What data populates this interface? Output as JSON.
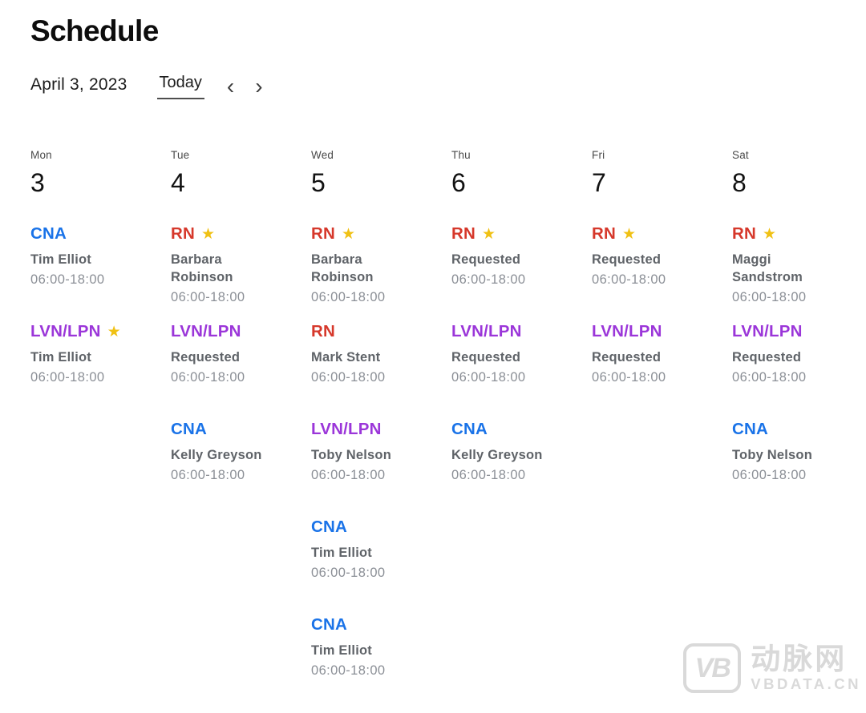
{
  "page_title": "Schedule",
  "toolbar": {
    "date_label": "April 3, 2023",
    "today_label": "Today",
    "prev_icon": "‹",
    "next_icon": "›"
  },
  "icons": {
    "star": "★"
  },
  "colors": {
    "cna": "#1a73e8",
    "rn": "#d6382b",
    "lvn": "#9b36d9",
    "star": "#f0c114",
    "name_text": "#5f6368",
    "time_text": "#8b8f96"
  },
  "days": [
    {
      "weekday": "Mon",
      "number": "3",
      "shifts": [
        {
          "role": "CNA",
          "role_key": "cna",
          "starred": false,
          "name": "Tim Elliot",
          "time": "06:00-18:00"
        },
        {
          "role": "LVN/LPN",
          "role_key": "lvn",
          "starred": true,
          "name": "Tim Elliot",
          "time": "06:00-18:00"
        },
        null,
        null,
        null
      ]
    },
    {
      "weekday": "Tue",
      "number": "4",
      "shifts": [
        {
          "role": "RN",
          "role_key": "rn",
          "starred": true,
          "name": "Barbara Robinson",
          "time": "06:00-18:00"
        },
        {
          "role": "LVN/LPN",
          "role_key": "lvn",
          "starred": false,
          "name": "Requested",
          "time": "06:00-18:00"
        },
        {
          "role": "CNA",
          "role_key": "cna",
          "starred": false,
          "name": "Kelly Greyson",
          "time": "06:00-18:00"
        },
        null,
        null
      ]
    },
    {
      "weekday": "Wed",
      "number": "5",
      "shifts": [
        {
          "role": "RN",
          "role_key": "rn",
          "starred": true,
          "name": "Barbara Robinson",
          "time": "06:00-18:00"
        },
        {
          "role": "RN",
          "role_key": "rn",
          "starred": false,
          "name": "Mark Stent",
          "time": "06:00-18:00"
        },
        {
          "role": "LVN/LPN",
          "role_key": "lvn",
          "starred": false,
          "name": "Toby Nelson",
          "time": "06:00-18:00"
        },
        {
          "role": "CNA",
          "role_key": "cna",
          "starred": false,
          "name": "Tim Elliot",
          "time": "06:00-18:00"
        },
        {
          "role": "CNA",
          "role_key": "cna",
          "starred": false,
          "name": "Tim Elliot",
          "time": "06:00-18:00"
        }
      ]
    },
    {
      "weekday": "Thu",
      "number": "6",
      "shifts": [
        {
          "role": "RN",
          "role_key": "rn",
          "starred": true,
          "name": "Requested",
          "time": "06:00-18:00"
        },
        {
          "role": "LVN/LPN",
          "role_key": "lvn",
          "starred": false,
          "name": "Requested",
          "time": "06:00-18:00"
        },
        {
          "role": "CNA",
          "role_key": "cna",
          "starred": false,
          "name": "Kelly Greyson",
          "time": "06:00-18:00"
        },
        null,
        null
      ]
    },
    {
      "weekday": "Fri",
      "number": "7",
      "shifts": [
        {
          "role": "RN",
          "role_key": "rn",
          "starred": true,
          "name": "Requested",
          "time": "06:00-18:00"
        },
        {
          "role": "LVN/LPN",
          "role_key": "lvn",
          "starred": false,
          "name": "Requested",
          "time": "06:00-18:00"
        },
        null,
        null,
        null
      ]
    },
    {
      "weekday": "Sat",
      "number": "8",
      "shifts": [
        {
          "role": "RN",
          "role_key": "rn",
          "starred": true,
          "name": "Maggi Sandstrom",
          "time": "06:00-18:00"
        },
        {
          "role": "LVN/LPN",
          "role_key": "lvn",
          "starred": false,
          "name": "Requested",
          "time": "06:00-18:00"
        },
        {
          "role": "CNA",
          "role_key": "cna",
          "starred": false,
          "name": "Toby Nelson",
          "time": "06:00-18:00"
        },
        null,
        null
      ]
    }
  ],
  "watermark": {
    "logo_text": "VB",
    "site_name": "动脉网",
    "site_url": "VBDATA.CN"
  }
}
